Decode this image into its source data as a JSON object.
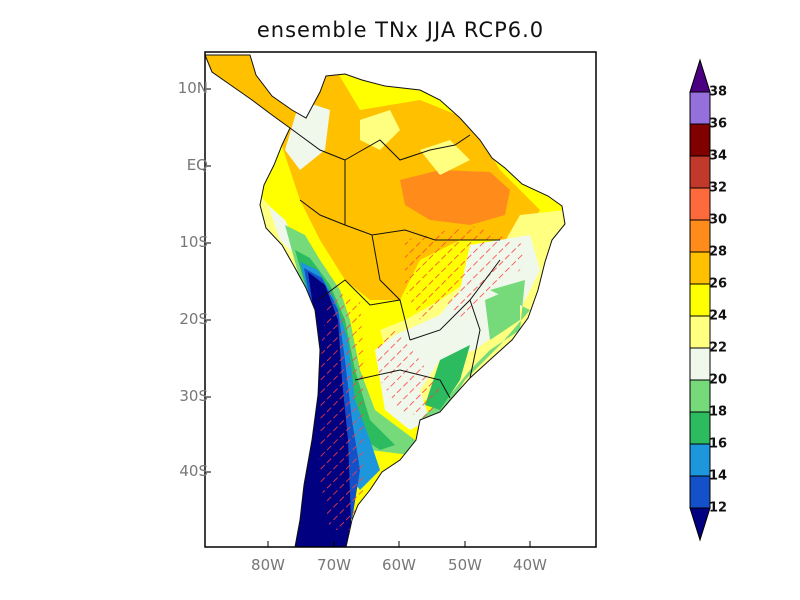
{
  "title": "ensemble TNx JJA RCP6.0",
  "chart_data": {
    "type": "heatmap",
    "subtype": "filled-contour map with hatching",
    "title": "ensemble TNx JJA RCP6.0",
    "region": "South America",
    "lon_range": [
      -90,
      -30
    ],
    "lat_range": [
      -50,
      15
    ],
    "y_tick_labels": [
      "10N",
      "EQ",
      "10S",
      "20S",
      "30S",
      "40S"
    ],
    "x_tick_labels": [
      "80W",
      "70W",
      "60W",
      "50W",
      "40W"
    ],
    "colorbar": {
      "orientation": "vertical",
      "position": "right",
      "levels": [
        "12",
        "14",
        "16",
        "18",
        "20",
        "22",
        "24",
        "26",
        "28",
        "30",
        "32",
        "34",
        "36",
        "38"
      ],
      "colors": [
        "#000080",
        "#1450c8",
        "#1e96dc",
        "#2dbb5f",
        "#76d97a",
        "#f0f8ec",
        "#ffff80",
        "#ffff00",
        "#ffc000",
        "#ff8c1a",
        "#ff6a3d",
        "#c0392b",
        "#800000",
        "#9370db",
        "#4b0082"
      ],
      "extend": "both"
    },
    "hatch_color": "#ff4040"
  }
}
